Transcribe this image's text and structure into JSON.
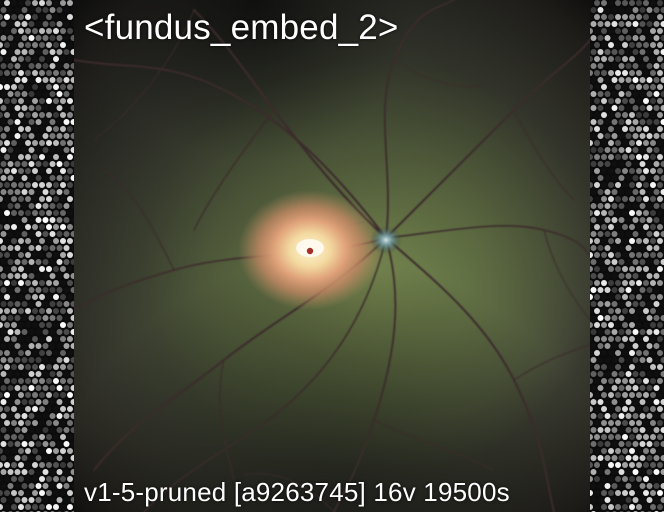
{
  "title_text": "<fundus_embed_2>",
  "footer_text": "v1-5-pruned [a9263745]  16v 19500s",
  "colors": {
    "background": "#000000",
    "retina_center": "#7a8a58",
    "retina_edge": "#2b2822",
    "macula_glow": "#f3e7b4",
    "vessel": "#3b2a2c"
  }
}
